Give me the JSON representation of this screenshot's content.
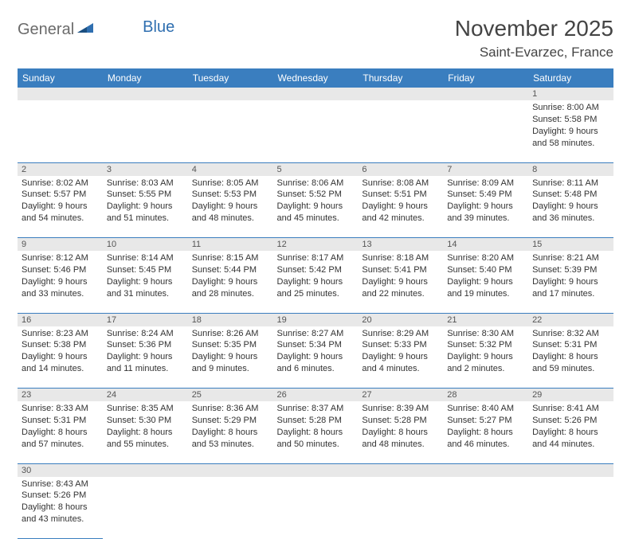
{
  "logo": {
    "general": "General",
    "blue": "Blue"
  },
  "title": {
    "month_year": "November 2025",
    "location": "Saint-Evarzec, France"
  },
  "day_headers": [
    "Sunday",
    "Monday",
    "Tuesday",
    "Wednesday",
    "Thursday",
    "Friday",
    "Saturday"
  ],
  "colors": {
    "header_bg": "#3a7ebf",
    "header_text": "#ffffff",
    "daynum_bg": "#e8e8e8",
    "border": "#3a7ebf",
    "body_bg": "#ffffff",
    "text": "#333333",
    "logo_gray": "#6b6b6b",
    "logo_blue": "#2f6fb0"
  },
  "weeks": [
    [
      null,
      null,
      null,
      null,
      null,
      null,
      {
        "n": "1",
        "sunrise": "Sunrise: 8:00 AM",
        "sunset": "Sunset: 5:58 PM",
        "daylight": "Daylight: 9 hours and 58 minutes."
      }
    ],
    [
      {
        "n": "2",
        "sunrise": "Sunrise: 8:02 AM",
        "sunset": "Sunset: 5:57 PM",
        "daylight": "Daylight: 9 hours and 54 minutes."
      },
      {
        "n": "3",
        "sunrise": "Sunrise: 8:03 AM",
        "sunset": "Sunset: 5:55 PM",
        "daylight": "Daylight: 9 hours and 51 minutes."
      },
      {
        "n": "4",
        "sunrise": "Sunrise: 8:05 AM",
        "sunset": "Sunset: 5:53 PM",
        "daylight": "Daylight: 9 hours and 48 minutes."
      },
      {
        "n": "5",
        "sunrise": "Sunrise: 8:06 AM",
        "sunset": "Sunset: 5:52 PM",
        "daylight": "Daylight: 9 hours and 45 minutes."
      },
      {
        "n": "6",
        "sunrise": "Sunrise: 8:08 AM",
        "sunset": "Sunset: 5:51 PM",
        "daylight": "Daylight: 9 hours and 42 minutes."
      },
      {
        "n": "7",
        "sunrise": "Sunrise: 8:09 AM",
        "sunset": "Sunset: 5:49 PM",
        "daylight": "Daylight: 9 hours and 39 minutes."
      },
      {
        "n": "8",
        "sunrise": "Sunrise: 8:11 AM",
        "sunset": "Sunset: 5:48 PM",
        "daylight": "Daylight: 9 hours and 36 minutes."
      }
    ],
    [
      {
        "n": "9",
        "sunrise": "Sunrise: 8:12 AM",
        "sunset": "Sunset: 5:46 PM",
        "daylight": "Daylight: 9 hours and 33 minutes."
      },
      {
        "n": "10",
        "sunrise": "Sunrise: 8:14 AM",
        "sunset": "Sunset: 5:45 PM",
        "daylight": "Daylight: 9 hours and 31 minutes."
      },
      {
        "n": "11",
        "sunrise": "Sunrise: 8:15 AM",
        "sunset": "Sunset: 5:44 PM",
        "daylight": "Daylight: 9 hours and 28 minutes."
      },
      {
        "n": "12",
        "sunrise": "Sunrise: 8:17 AM",
        "sunset": "Sunset: 5:42 PM",
        "daylight": "Daylight: 9 hours and 25 minutes."
      },
      {
        "n": "13",
        "sunrise": "Sunrise: 8:18 AM",
        "sunset": "Sunset: 5:41 PM",
        "daylight": "Daylight: 9 hours and 22 minutes."
      },
      {
        "n": "14",
        "sunrise": "Sunrise: 8:20 AM",
        "sunset": "Sunset: 5:40 PM",
        "daylight": "Daylight: 9 hours and 19 minutes."
      },
      {
        "n": "15",
        "sunrise": "Sunrise: 8:21 AM",
        "sunset": "Sunset: 5:39 PM",
        "daylight": "Daylight: 9 hours and 17 minutes."
      }
    ],
    [
      {
        "n": "16",
        "sunrise": "Sunrise: 8:23 AM",
        "sunset": "Sunset: 5:38 PM",
        "daylight": "Daylight: 9 hours and 14 minutes."
      },
      {
        "n": "17",
        "sunrise": "Sunrise: 8:24 AM",
        "sunset": "Sunset: 5:36 PM",
        "daylight": "Daylight: 9 hours and 11 minutes."
      },
      {
        "n": "18",
        "sunrise": "Sunrise: 8:26 AM",
        "sunset": "Sunset: 5:35 PM",
        "daylight": "Daylight: 9 hours and 9 minutes."
      },
      {
        "n": "19",
        "sunrise": "Sunrise: 8:27 AM",
        "sunset": "Sunset: 5:34 PM",
        "daylight": "Daylight: 9 hours and 6 minutes."
      },
      {
        "n": "20",
        "sunrise": "Sunrise: 8:29 AM",
        "sunset": "Sunset: 5:33 PM",
        "daylight": "Daylight: 9 hours and 4 minutes."
      },
      {
        "n": "21",
        "sunrise": "Sunrise: 8:30 AM",
        "sunset": "Sunset: 5:32 PM",
        "daylight": "Daylight: 9 hours and 2 minutes."
      },
      {
        "n": "22",
        "sunrise": "Sunrise: 8:32 AM",
        "sunset": "Sunset: 5:31 PM",
        "daylight": "Daylight: 8 hours and 59 minutes."
      }
    ],
    [
      {
        "n": "23",
        "sunrise": "Sunrise: 8:33 AM",
        "sunset": "Sunset: 5:31 PM",
        "daylight": "Daylight: 8 hours and 57 minutes."
      },
      {
        "n": "24",
        "sunrise": "Sunrise: 8:35 AM",
        "sunset": "Sunset: 5:30 PM",
        "daylight": "Daylight: 8 hours and 55 minutes."
      },
      {
        "n": "25",
        "sunrise": "Sunrise: 8:36 AM",
        "sunset": "Sunset: 5:29 PM",
        "daylight": "Daylight: 8 hours and 53 minutes."
      },
      {
        "n": "26",
        "sunrise": "Sunrise: 8:37 AM",
        "sunset": "Sunset: 5:28 PM",
        "daylight": "Daylight: 8 hours and 50 minutes."
      },
      {
        "n": "27",
        "sunrise": "Sunrise: 8:39 AM",
        "sunset": "Sunset: 5:28 PM",
        "daylight": "Daylight: 8 hours and 48 minutes."
      },
      {
        "n": "28",
        "sunrise": "Sunrise: 8:40 AM",
        "sunset": "Sunset: 5:27 PM",
        "daylight": "Daylight: 8 hours and 46 minutes."
      },
      {
        "n": "29",
        "sunrise": "Sunrise: 8:41 AM",
        "sunset": "Sunset: 5:26 PM",
        "daylight": "Daylight: 8 hours and 44 minutes."
      }
    ],
    [
      {
        "n": "30",
        "sunrise": "Sunrise: 8:43 AM",
        "sunset": "Sunset: 5:26 PM",
        "daylight": "Daylight: 8 hours and 43 minutes."
      },
      null,
      null,
      null,
      null,
      null,
      null
    ]
  ]
}
